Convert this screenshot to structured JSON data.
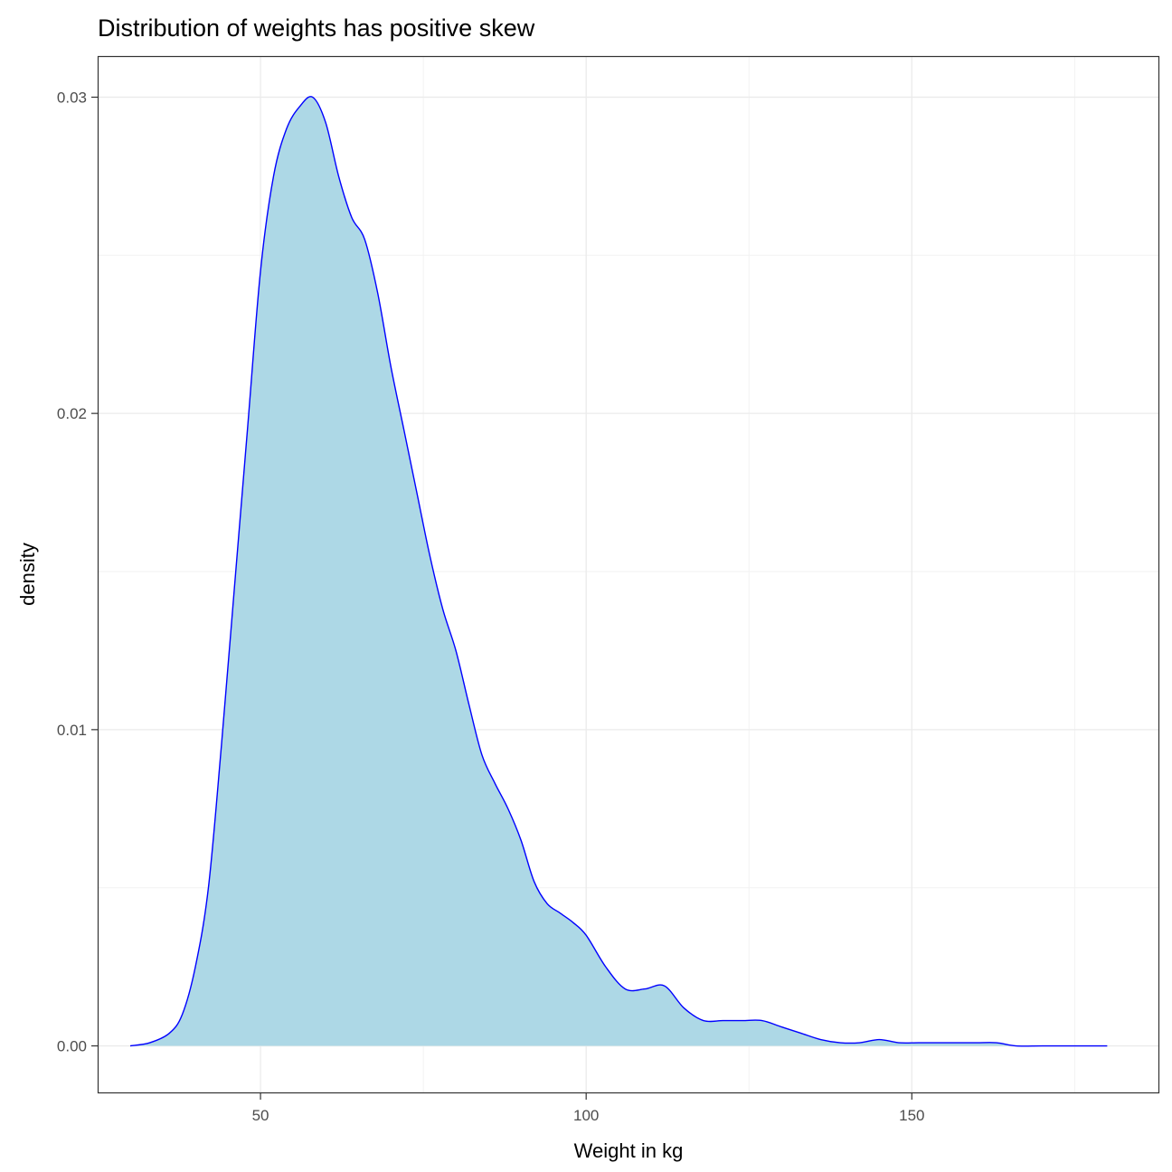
{
  "chart_data": {
    "type": "area",
    "title": "Distribution of weights has positive skew",
    "xlabel": "Weight in kg",
    "ylabel": "density",
    "xlim": [
      25,
      188
    ],
    "ylim": [
      -0.0015,
      0.0313
    ],
    "x_ticks": [
      50,
      100,
      150
    ],
    "x_tick_labels": [
      "50",
      "100",
      "150"
    ],
    "y_ticks": [
      0.0,
      0.01,
      0.02,
      0.03
    ],
    "y_tick_labels": [
      "0.00",
      "0.01",
      "0.02",
      "0.03"
    ],
    "grid": true,
    "legend": "none",
    "fill_color": "#add8e6",
    "line_color": "#0000ff",
    "series": [
      {
        "x": [
          30,
          33,
          36,
          38,
          40,
          42,
          44,
          46,
          48,
          50,
          52,
          54,
          56,
          58,
          60,
          62,
          64,
          66,
          68,
          70,
          72,
          74,
          76,
          78,
          80,
          82,
          84,
          86,
          88,
          90,
          92,
          94,
          96,
          98,
          100,
          103,
          106,
          109,
          112,
          115,
          118,
          121,
          124,
          127,
          130,
          133,
          136,
          139,
          142,
          145,
          148,
          151,
          154,
          157,
          160,
          163,
          166,
          170,
          175,
          180
        ],
        "y": [
          0.0,
          0.0001,
          0.0004,
          0.001,
          0.0025,
          0.005,
          0.0095,
          0.0145,
          0.0195,
          0.0245,
          0.0275,
          0.029,
          0.0297,
          0.03,
          0.0292,
          0.0275,
          0.0262,
          0.0255,
          0.0238,
          0.0215,
          0.0195,
          0.0175,
          0.0155,
          0.0138,
          0.0125,
          0.0108,
          0.0092,
          0.0083,
          0.0075,
          0.0065,
          0.0052,
          0.0045,
          0.0042,
          0.0039,
          0.0035,
          0.0025,
          0.0018,
          0.0018,
          0.0019,
          0.0012,
          0.0008,
          0.0008,
          0.0008,
          0.0008,
          0.0006,
          0.0004,
          0.0002,
          0.0001,
          0.0001,
          0.0002,
          0.0001,
          0.0001,
          0.0001,
          0.0001,
          0.0001,
          0.0001,
          0.0,
          0.0,
          0.0,
          0.0
        ]
      }
    ]
  }
}
